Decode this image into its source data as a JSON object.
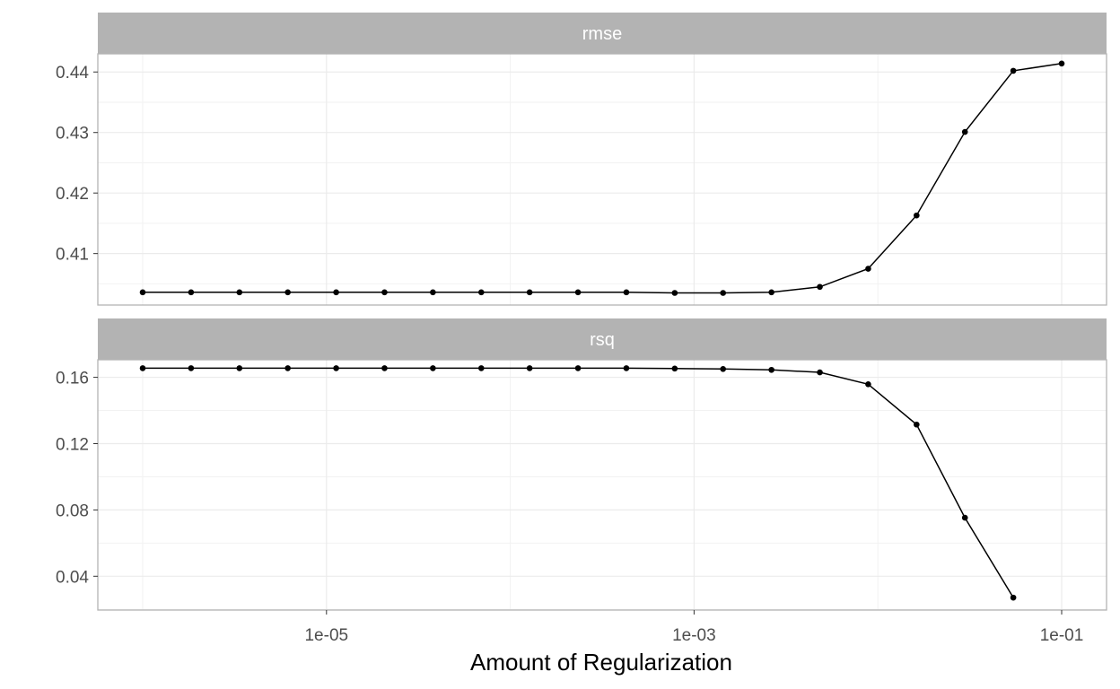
{
  "chart_data": {
    "type": "line",
    "xlabel": "Amount of Regularization",
    "x_scale": "log10",
    "x_ticks": [
      "1e-05",
      "1e-03",
      "1e-01"
    ],
    "x_tick_values": [
      1e-05,
      0.001,
      0.1
    ],
    "x": [
      1e-06,
      1.833e-06,
      3.36e-06,
      6.158e-06,
      1.129e-05,
      2.069e-05,
      3.793e-05,
      6.952e-05,
      0.0001274,
      0.0002336,
      0.0004281,
      0.0007848,
      0.001438,
      0.002637,
      0.004833,
      0.008859,
      0.01624,
      0.02976,
      0.05456,
      0.1
    ],
    "grid": true,
    "legend": "none",
    "colors": {
      "strip_bg": "#b3b3b3",
      "line": "#000000",
      "grid": "#ebebeb",
      "border": "#b3b3b3"
    },
    "panels": [
      {
        "name": "rmse",
        "y_ticks": [
          "0.41",
          "0.42",
          "0.43",
          "0.44"
        ],
        "y_tick_values": [
          0.41,
          0.42,
          0.43,
          0.44
        ],
        "ylim": [
          0.4015,
          0.443
        ],
        "values": [
          0.4036,
          0.4036,
          0.4036,
          0.4036,
          0.4036,
          0.4036,
          0.4036,
          0.4036,
          0.4036,
          0.4036,
          0.4036,
          0.4035,
          0.4035,
          0.4036,
          0.4045,
          0.4075,
          0.4163,
          0.4301,
          0.4402,
          0.4414
        ]
      },
      {
        "name": "rsq",
        "y_ticks": [
          "0.04",
          "0.08",
          "0.12",
          "0.16"
        ],
        "y_tick_values": [
          0.04,
          0.08,
          0.12,
          0.16
        ],
        "ylim": [
          0.0196,
          0.1706
        ],
        "values": [
          0.1655,
          0.1655,
          0.1655,
          0.1655,
          0.1655,
          0.1655,
          0.1655,
          0.1655,
          0.1655,
          0.1655,
          0.1655,
          0.1653,
          0.165,
          0.1645,
          0.163,
          0.1558,
          0.1315,
          0.0753,
          0.0271,
          null
        ]
      }
    ]
  }
}
